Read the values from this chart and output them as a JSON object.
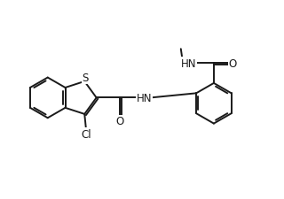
{
  "bg_color": "#ffffff",
  "line_color": "#1a1a1a",
  "line_width": 1.4,
  "font_size": 8.5,
  "figsize": [
    3.2,
    2.26
  ],
  "dpi": 100,
  "xlim": [
    0,
    10
  ],
  "ylim": [
    0,
    7
  ]
}
